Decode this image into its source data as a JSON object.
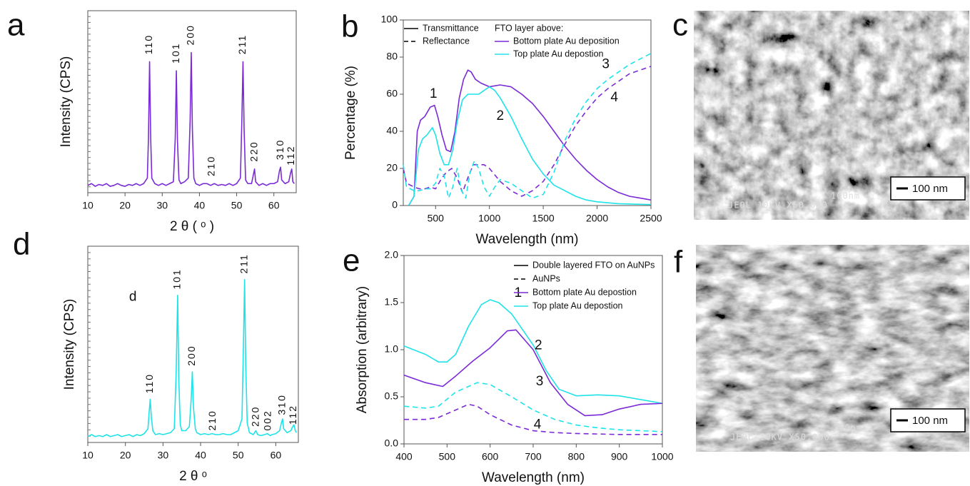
{
  "chart_data": [
    {
      "type": "line",
      "panel": "a",
      "xlabel": "2 θ ( ᵒ )",
      "ylabel": "Intensity (CPS)",
      "xlim": [
        10,
        66
      ],
      "ylim": [
        0,
        100
      ],
      "xticks": [
        10,
        20,
        30,
        40,
        50,
        60
      ],
      "series": [
        {
          "color": "#7a2ad6",
          "x": [
            10,
            11,
            12,
            13,
            14,
            15,
            16,
            17,
            18,
            19,
            20,
            21,
            22,
            23,
            24,
            25,
            26,
            26.3,
            26.6,
            26.9,
            27.2,
            28,
            29,
            30,
            31,
            32,
            33,
            33.5,
            33.8,
            34.1,
            34.5,
            35,
            36,
            37,
            37.5,
            37.8,
            38.1,
            38.5,
            39,
            40,
            41,
            42,
            43,
            44,
            45,
            46,
            47,
            48,
            49,
            50,
            51,
            51.4,
            51.7,
            52,
            52.4,
            53,
            54,
            54.5,
            54.8,
            55.1,
            56,
            57,
            58,
            59,
            60,
            61,
            61.5,
            61.8,
            62.1,
            63,
            64,
            64.5,
            64.8,
            65.1,
            65.5
          ],
          "values": [
            4,
            5,
            3.5,
            4.5,
            4,
            5,
            3.5,
            4,
            5,
            4,
            3.5,
            4.5,
            4,
            5,
            4,
            5,
            8,
            30,
            72,
            30,
            8,
            5,
            4,
            5,
            4,
            5,
            6,
            30,
            67,
            28,
            7,
            5,
            6,
            8,
            40,
            77,
            35,
            8,
            5,
            4,
            5,
            5,
            4,
            5,
            4,
            4.5,
            4,
            5,
            4,
            5,
            8,
            40,
            72,
            35,
            7,
            5,
            5,
            10,
            13,
            6,
            4,
            5,
            4,
            5,
            5,
            6,
            12,
            14,
            7,
            5,
            6,
            11,
            13,
            6,
            5
          ]
        }
      ],
      "annotations": [
        {
          "text": "110",
          "x": 26.6,
          "y": 76
        },
        {
          "text": "101",
          "x": 33.8,
          "y": 71
        },
        {
          "text": "200",
          "x": 37.8,
          "y": 81
        },
        {
          "text": "210",
          "x": 43.3,
          "y": 9
        },
        {
          "text": "211",
          "x": 51.7,
          "y": 76
        },
        {
          "text": "220",
          "x": 54.8,
          "y": 17
        },
        {
          "text": "310",
          "x": 61.8,
          "y": 18
        },
        {
          "text": "112",
          "x": 64.7,
          "y": 15
        }
      ]
    },
    {
      "type": "line",
      "panel": "b",
      "xlabel": "Wavelength (nm)",
      "ylabel": "Percentage (%)",
      "xlim": [
        200,
        2500
      ],
      "ylim": [
        0,
        100
      ],
      "xticks": [
        500,
        1000,
        1500,
        2000,
        2500
      ],
      "yticks": [
        0,
        20,
        40,
        60,
        80,
        100
      ],
      "legend": {
        "styles": [
          {
            "label": "Transmittance",
            "dash": false
          },
          {
            "label": "Reflectance",
            "dash": true
          }
        ],
        "title": "FTO layer above:",
        "entries": [
          {
            "label": "Bottom plate Au deposition",
            "color": "#7a2ad6"
          },
          {
            "label": "Top plate Au depostion",
            "color": "#1ee3e8"
          }
        ]
      },
      "series": [
        {
          "color": "#7a2ad6",
          "dash": false,
          "x": [
            250,
            300,
            330,
            360,
            400,
            450,
            490,
            520,
            560,
            600,
            640,
            680,
            720,
            760,
            800,
            830,
            870,
            920,
            1000,
            1100,
            1200,
            1300,
            1400,
            1500,
            1600,
            1700,
            1800,
            1900,
            2000,
            2100,
            2200,
            2300,
            2400,
            2500
          ],
          "values": [
            0,
            5,
            40,
            46,
            48,
            53,
            54,
            48,
            38,
            30,
            29,
            40,
            58,
            68,
            73,
            72,
            68,
            66,
            64,
            65,
            64,
            60,
            55,
            48,
            40,
            32,
            25,
            19,
            14,
            10,
            7,
            5,
            4,
            3
          ]
        },
        {
          "color": "#1ee3e8",
          "dash": false,
          "x": [
            250,
            300,
            340,
            380,
            420,
            470,
            500,
            540,
            580,
            620,
            660,
            700,
            750,
            800,
            850,
            900,
            950,
            1000,
            1050,
            1100,
            1200,
            1300,
            1400,
            1500,
            1600,
            1700,
            1800,
            1900,
            2000,
            2200,
            2500
          ],
          "values": [
            0,
            5,
            30,
            36,
            38,
            42,
            38,
            28,
            22,
            22,
            30,
            45,
            57,
            60,
            60,
            60,
            62,
            64,
            62,
            58,
            48,
            36,
            25,
            17,
            11,
            8,
            5,
            3,
            2,
            1,
            0.5
          ]
        },
        {
          "color": "#7a2ad6",
          "dash": true,
          "x": [
            200,
            230,
            300,
            350,
            400,
            450,
            500,
            550,
            600,
            650,
            700,
            750,
            800,
            850,
            900,
            950,
            1000,
            1100,
            1200,
            1300,
            1400,
            1500,
            1600,
            1700,
            1800,
            1900,
            2000,
            2100,
            2200,
            2300,
            2400,
            2500
          ],
          "values": [
            20,
            12,
            10,
            9,
            9,
            10,
            9,
            14,
            18,
            20,
            15,
            7,
            15,
            22,
            22,
            22,
            20,
            13,
            8,
            5,
            8,
            13,
            22,
            33,
            43,
            51,
            58,
            63,
            67,
            71,
            73,
            75
          ]
        },
        {
          "color": "#1ee3e8",
          "dash": true,
          "x": [
            200,
            230,
            300,
            350,
            400,
            450,
            500,
            540,
            580,
            620,
            660,
            700,
            740,
            780,
            820,
            860,
            900,
            950,
            1000,
            1050,
            1100,
            1200,
            1300,
            1400,
            1500,
            1600,
            1700,
            1800,
            1900,
            2000,
            2100,
            2200,
            2300,
            2400,
            2500
          ],
          "values": [
            22,
            10,
            8,
            8,
            9,
            9,
            12,
            20,
            16,
            4,
            10,
            20,
            8,
            4,
            18,
            24,
            20,
            10,
            5,
            10,
            14,
            12,
            8,
            4,
            6,
            18,
            35,
            47,
            56,
            63,
            68,
            72,
            76,
            79,
            82
          ]
        }
      ],
      "annotations": [
        {
          "text": "1",
          "x": 480,
          "y": 60
        },
        {
          "text": "2",
          "x": 1100,
          "y": 48
        },
        {
          "text": "3",
          "x": 2080,
          "y": 76
        },
        {
          "text": "4",
          "x": 2160,
          "y": 58
        }
      ]
    },
    {
      "type": "line",
      "panel": "d",
      "xlabel": "2 θ  ᵒ",
      "ylabel": "Intensity (CPS)",
      "xlim": [
        10,
        66
      ],
      "ylim": [
        0,
        100
      ],
      "xticks": [
        10,
        20,
        30,
        40,
        50,
        60
      ],
      "series": [
        {
          "color": "#1ee3e8",
          "x": [
            10,
            11,
            12,
            13,
            14,
            15,
            16,
            17,
            18,
            19,
            20,
            21,
            22,
            23,
            24,
            25,
            26,
            26.3,
            26.6,
            26.9,
            27.3,
            28,
            29,
            30,
            31,
            32,
            33,
            33.5,
            33.9,
            34.2,
            34.6,
            35,
            36,
            37,
            37.5,
            37.8,
            38.1,
            38.6,
            39,
            40,
            41,
            42,
            43,
            44,
            45,
            46,
            47,
            48,
            49,
            50,
            51,
            51.4,
            51.7,
            52,
            52.4,
            53,
            54,
            54.7,
            55.2,
            56,
            57,
            57.8,
            58.5,
            59,
            60,
            61,
            61.5,
            61.8,
            62.1,
            63,
            64,
            64.5,
            64.8,
            65.2,
            65.5
          ],
          "values": [
            3,
            4,
            3,
            3.5,
            3,
            4,
            3,
            3.5,
            4,
            3,
            3.5,
            4,
            3,
            4,
            3.5,
            4.5,
            7,
            15,
            22,
            13,
            6,
            4,
            4.5,
            4,
            4.5,
            5,
            7,
            35,
            75,
            32,
            9,
            6,
            6,
            8,
            22,
            36,
            18,
            7,
            5,
            4,
            4.5,
            4,
            4.5,
            4,
            4,
            4.5,
            4,
            4,
            5,
            6,
            12,
            50,
            83,
            40,
            10,
            5,
            4,
            6,
            4,
            3.5,
            4,
            4.5,
            3.5,
            4,
            4.5,
            6,
            10,
            12,
            7,
            5,
            6,
            8,
            9,
            6,
            5
          ]
        }
      ],
      "annotations": [
        {
          "text": "110",
          "x": 26.6,
          "y": 25
        },
        {
          "text": "101",
          "x": 33.9,
          "y": 78
        },
        {
          "text": "200",
          "x": 37.8,
          "y": 39
        },
        {
          "text": "210",
          "x": 43.3,
          "y": 6
        },
        {
          "text": "211",
          "x": 51.7,
          "y": 86
        },
        {
          "text": "220",
          "x": 54.8,
          "y": 8
        },
        {
          "text": "002",
          "x": 58,
          "y": 6
        },
        {
          "text": "310",
          "x": 61.8,
          "y": 14
        },
        {
          "text": "112",
          "x": 64.7,
          "y": 9
        },
        {
          "text": "d",
          "x": 22,
          "y": 74
        }
      ]
    },
    {
      "type": "line",
      "panel": "e",
      "xlabel": "Wavelength (nm)",
      "ylabel": "Absorption (arbitrary)",
      "xlim": [
        400,
        1000
      ],
      "ylim": [
        0,
        2
      ],
      "xticks": [
        400,
        500,
        600,
        700,
        800,
        900,
        1000
      ],
      "yticks": [
        {
          "value": 0,
          "label": "0.0"
        },
        0.5,
        {
          "value": 1,
          "label": "1.0"
        },
        1.5,
        {
          "value": 2,
          "label": "2.0"
        }
      ],
      "legend": {
        "styles": [
          {
            "label": "Double layered FTO on AuNPs",
            "dash": false
          },
          {
            "label": "AuNPs",
            "dash": true
          }
        ],
        "entries": [
          {
            "label": "Bottom plate Au depostion",
            "color": "#7a2ad6"
          },
          {
            "label": "Top plate Au depostion",
            "color": "#1ee3e8"
          }
        ]
      },
      "series": [
        {
          "color": "#1ee3e8",
          "dash": false,
          "x": [
            400,
            450,
            480,
            500,
            520,
            550,
            580,
            600,
            620,
            650,
            700,
            730,
            760,
            800,
            850,
            900,
            950,
            1000
          ],
          "values": [
            1.04,
            0.95,
            0.87,
            0.87,
            0.95,
            1.25,
            1.48,
            1.53,
            1.5,
            1.38,
            1.05,
            0.78,
            0.58,
            0.51,
            0.52,
            0.51,
            0.47,
            0.43
          ]
        },
        {
          "color": "#7a2ad6",
          "dash": false,
          "x": [
            400,
            450,
            490,
            520,
            560,
            600,
            640,
            660,
            700,
            740,
            780,
            820,
            860,
            900,
            950,
            1000
          ],
          "values": [
            0.73,
            0.65,
            0.61,
            0.72,
            0.88,
            1.02,
            1.2,
            1.21,
            1,
            0.65,
            0.42,
            0.3,
            0.31,
            0.37,
            0.42,
            0.43
          ]
        },
        {
          "color": "#1ee3e8",
          "dash": true,
          "x": [
            400,
            450,
            480,
            520,
            570,
            600,
            650,
            700,
            750,
            800,
            850,
            900,
            1000
          ],
          "values": [
            0.4,
            0.38,
            0.4,
            0.55,
            0.65,
            0.63,
            0.5,
            0.36,
            0.26,
            0.2,
            0.17,
            0.15,
            0.13
          ]
        },
        {
          "color": "#7a2ad6",
          "dash": true,
          "x": [
            400,
            450,
            480,
            520,
            550,
            570,
            600,
            650,
            700,
            750,
            800,
            900,
            1000
          ],
          "values": [
            0.26,
            0.26,
            0.28,
            0.36,
            0.42,
            0.4,
            0.31,
            0.2,
            0.14,
            0.12,
            0.11,
            0.1,
            0.1
          ]
        }
      ],
      "annotations": [
        {
          "text": "1",
          "x": 665,
          "y": 1.6
        },
        {
          "text": "2",
          "x": 712,
          "y": 1.04
        },
        {
          "text": "3",
          "x": 715,
          "y": 0.66
        },
        {
          "text": "4",
          "x": 710,
          "y": 0.2
        }
      ]
    }
  ],
  "images": [
    {
      "panel": "c",
      "scale_bar": "100 nm",
      "overlay": "JEOL   10KV   X50,000",
      "overlay_scale": "100nm"
    },
    {
      "panel": "f",
      "scale_bar": "100 nm",
      "overlay": "JEOL   10KV   X50,000",
      "overlay_scale": "100nm"
    }
  ]
}
